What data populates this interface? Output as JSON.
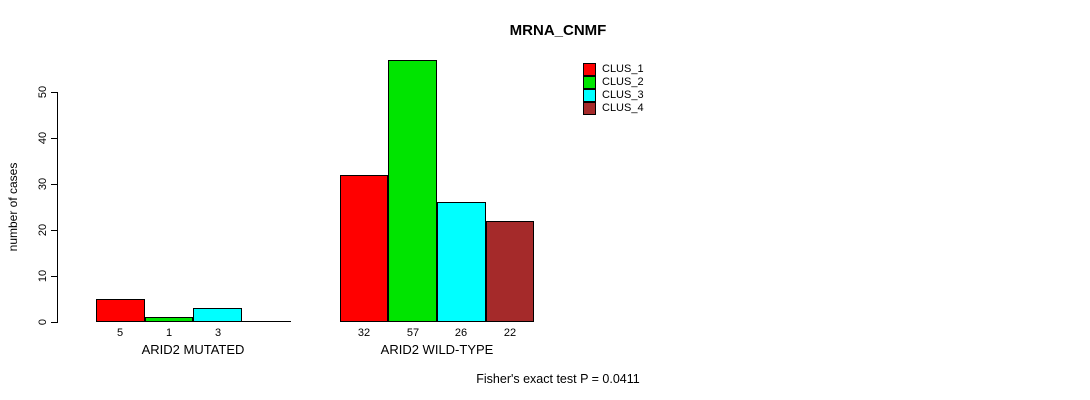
{
  "title": "MRNA_CNMF",
  "chart_data": {
    "type": "bar",
    "title": "MRNA_CNMF",
    "xlabel": "",
    "ylabel": "number of cases",
    "yticks": [
      0,
      10,
      20,
      30,
      40,
      50
    ],
    "ylim": [
      0,
      57.5
    ],
    "grid": false,
    "legend_position": "top-right",
    "bar_value_labels": true,
    "series": [
      {
        "name": "CLUS_1",
        "color": "#ff0000"
      },
      {
        "name": "CLUS_2",
        "color": "#00e400"
      },
      {
        "name": "CLUS_3",
        "color": "#00ffff"
      },
      {
        "name": "CLUS_4",
        "color": "#a52a2a"
      }
    ],
    "groups": [
      {
        "label": "ARID2 MUTATED",
        "values": [
          5,
          1,
          3,
          0
        ]
      },
      {
        "label": "ARID2 WILD-TYPE",
        "values": [
          32,
          57,
          26,
          22
        ]
      }
    ],
    "annotation": "Fisher's exact test P = 0.0411"
  }
}
